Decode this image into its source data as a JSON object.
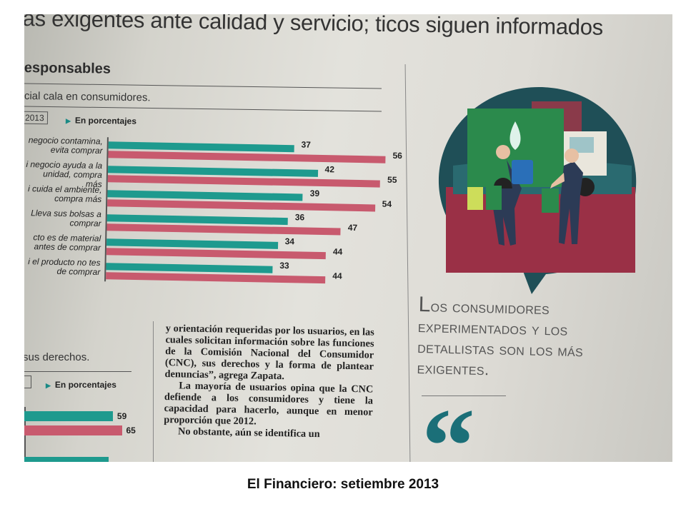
{
  "article": {
    "headline": "as exigentes ante calidad y servicio; ticos siguen informados",
    "section_title": "esponsables",
    "subtitle": "cial cala en consumidores.",
    "year_tag": "2013",
    "unit_label": "En porcentajes"
  },
  "chart_data": {
    "type": "bar",
    "orientation": "horizontal",
    "title": "",
    "categories": [
      "negocio contamina, evita comprar",
      "i negocio ayuda a la unidad, compra más",
      "i cuida el ambiente, compra más",
      "Lleva sus bolsas a comprar",
      "cto es de material antes de comprar",
      "i el producto no tes de comprar"
    ],
    "series": [
      {
        "color": "#1e9a8e",
        "values": [
          37,
          42,
          39,
          36,
          34,
          33
        ]
      },
      {
        "color": "#c85a6e",
        "values": [
          56,
          55,
          54,
          47,
          44,
          44
        ]
      }
    ],
    "xlim": [
      0,
      60
    ],
    "grid": false
  },
  "chart2": {
    "subtitle": "sus derechos.",
    "unit_label": "En porcentajes",
    "values": [
      59,
      65
    ]
  },
  "body_text": {
    "paragraphs": [
      "y orientación requeridas por los usuarios, en las cuales solicitan información sobre las funciones de la Comisión Nacional del Consumidor (CNC), sus derechos y la forma de plantear denuncias”, agrega Zapata.",
      "La mayoría de usuarios opina que la CNC defiende a los consumidores y tiene la capacidad para hacerlo, aunque en menor proporción que 2012.",
      "No obstante, aún se identifica un"
    ]
  },
  "pullquote": {
    "first_letter": "L",
    "text": "os consumidores experimentados y los detallistas son los más exigentes.",
    "mark": "“"
  },
  "colors": {
    "teal": "#1e9a8e",
    "red": "#c85a6e",
    "quote_teal": "#1b6f78"
  },
  "caption": "El Financiero: setiembre 2013"
}
